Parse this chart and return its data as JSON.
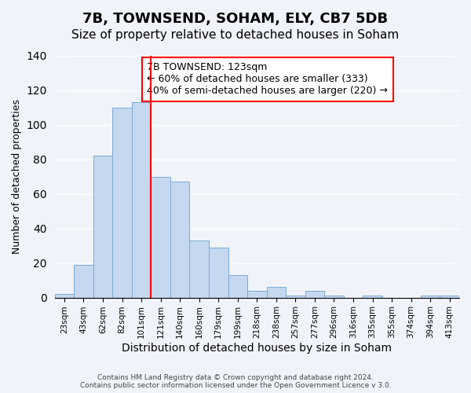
{
  "title": "7B, TOWNSEND, SOHAM, ELY, CB7 5DB",
  "subtitle": "Size of property relative to detached houses in Soham",
  "xlabel": "Distribution of detached houses by size in Soham",
  "ylabel": "Number of detached properties",
  "bar_color": "#c5d8f0",
  "bar_edge_color": "#7baad4",
  "background_color": "#f0f4fa",
  "grid_color": "#ffffff",
  "categories": [
    "23sqm",
    "43sqm",
    "62sqm",
    "82sqm",
    "101sqm",
    "121sqm",
    "140sqm",
    "160sqm",
    "179sqm",
    "199sqm",
    "218sqm",
    "238sqm",
    "257sqm",
    "277sqm",
    "296sqm",
    "316sqm",
    "335sqm",
    "355sqm",
    "374sqm",
    "394sqm",
    "413sqm"
  ],
  "values": [
    2,
    19,
    82,
    110,
    113,
    70,
    67,
    33,
    29,
    13,
    4,
    6,
    1,
    4,
    1,
    0,
    1,
    0,
    0,
    1,
    1
  ],
  "ylim": [
    0,
    140
  ],
  "yticks": [
    0,
    20,
    40,
    60,
    80,
    100,
    120,
    140
  ],
  "red_line_index": 5,
  "annotation_text": "7B TOWNSEND: 123sqm\n← 60% of detached houses are smaller (333)\n40% of semi-detached houses are larger (220) →",
  "annotation_fontsize": 9,
  "footer_text": "Contains HM Land Registry data © Crown copyright and database right 2024.\nContains public sector information licensed under the Open Government Licence v 3.0.",
  "title_fontsize": 13,
  "subtitle_fontsize": 11,
  "xlabel_fontsize": 10,
  "ylabel_fontsize": 9
}
